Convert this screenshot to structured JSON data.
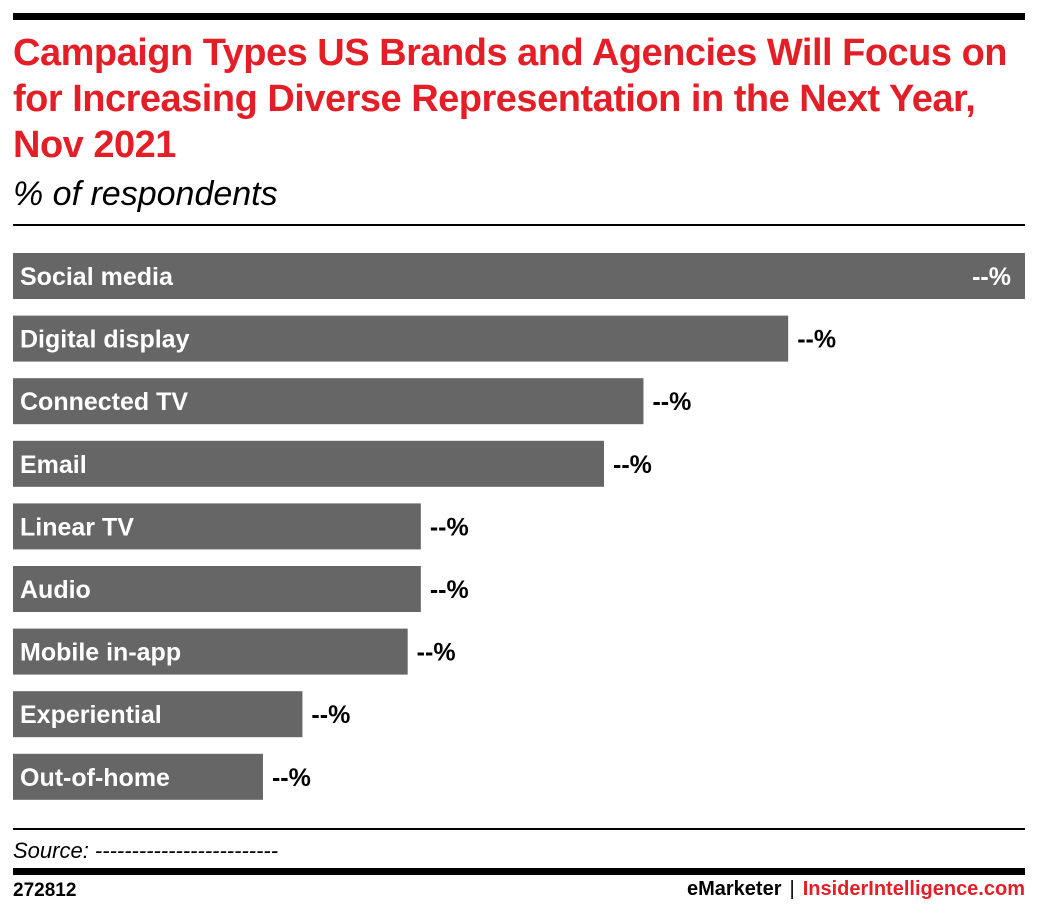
{
  "header": {
    "title": "Campaign Types US Brands and Agencies Will Focus on for Increasing Diverse Representation in the Next Year, Nov 2021",
    "subtitle": "% of respondents"
  },
  "footer": {
    "source": "Source: -------------------------",
    "chart_id": "272812",
    "brand_emarketer": "eMarketer",
    "brand_separator": "|",
    "brand_insider": "InsiderIntelligence.com"
  },
  "colors": {
    "title": "#e41e26",
    "bar": "#666666",
    "bar_label": "#ffffff",
    "value_label": "#000000"
  },
  "chart_data": {
    "type": "bar",
    "orientation": "horizontal",
    "title": "Campaign Types US Brands and Agencies Will Focus on for Increasing Diverse Representation in the Next Year, Nov 2021",
    "subtitle": "% of respondents",
    "categories": [
      "Social media",
      "Digital display",
      "Connected TV",
      "Email",
      "Linear TV",
      "Audio",
      "Mobile in-app",
      "Experiential",
      "Out-of-home"
    ],
    "values": [
      100,
      76.6,
      62.3,
      58.4,
      40.3,
      40.3,
      39.0,
      28.6,
      24.7
    ],
    "value_labels": [
      "--%",
      "--%",
      "--%",
      "--%",
      "--%",
      "--%",
      "--%",
      "--%",
      "--%"
    ],
    "value_scale_note": "relative bar lengths; actual percentages not shown",
    "xlim": [
      0,
      100
    ],
    "grid": false,
    "legend": "none"
  }
}
